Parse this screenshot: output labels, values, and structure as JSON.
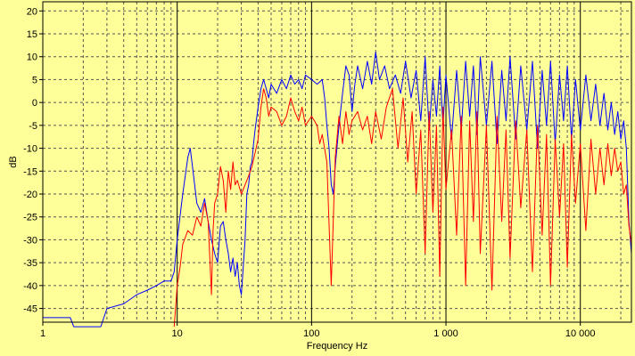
{
  "chart_data": {
    "type": "line",
    "title": "",
    "xlabel": "Frequency Hz",
    "ylabel": "dB",
    "xscale": "log",
    "xlim": [
      1,
      24000
    ],
    "ylim": [
      -48,
      22
    ],
    "grid": true,
    "legend": "none",
    "colors": {
      "background": "#ffff99",
      "grid_major": "#000000",
      "grid_minor": "#555555"
    },
    "x_ticks": [
      {
        "value": 1,
        "label": "1"
      },
      {
        "value": 10,
        "label": "10"
      },
      {
        "value": 100,
        "label": "100"
      },
      {
        "value": 1000,
        "label": "1 000"
      },
      {
        "value": 10000,
        "label": "10 000"
      }
    ],
    "y_ticks": [
      {
        "value": 20,
        "label": "20"
      },
      {
        "value": 15,
        "label": "15"
      },
      {
        "value": 10,
        "label": "10"
      },
      {
        "value": 5,
        "label": "5"
      },
      {
        "value": 0,
        "label": "0"
      },
      {
        "value": -5,
        "label": "-5"
      },
      {
        "value": -10,
        "label": "-10"
      },
      {
        "value": -15,
        "label": "-15"
      },
      {
        "value": -20,
        "label": "-20"
      },
      {
        "value": -25,
        "label": "-25"
      },
      {
        "value": -30,
        "label": "-30"
      },
      {
        "value": -35,
        "label": "-35"
      },
      {
        "value": -40,
        "label": "-40"
      },
      {
        "value": -45,
        "label": "-45"
      }
    ],
    "series": [
      {
        "color": "#0000ff",
        "points": [
          [
            1,
            -47
          ],
          [
            1.6,
            -47
          ],
          [
            1.7,
            -49
          ],
          [
            2.7,
            -49
          ],
          [
            3,
            -45
          ],
          [
            4,
            -44
          ],
          [
            5,
            -42
          ],
          [
            6,
            -41
          ],
          [
            7,
            -40
          ],
          [
            8,
            -39
          ],
          [
            9,
            -39
          ],
          [
            9.5,
            -37
          ],
          [
            10,
            -30
          ],
          [
            11,
            -20
          ],
          [
            12,
            -12
          ],
          [
            12.5,
            -10
          ],
          [
            13,
            -14
          ],
          [
            14,
            -22
          ],
          [
            15,
            -24
          ],
          [
            16,
            -21
          ],
          [
            17,
            -26
          ],
          [
            18,
            -30
          ],
          [
            19,
            -33
          ],
          [
            20,
            -35
          ],
          [
            21,
            -27
          ],
          [
            22,
            -26
          ],
          [
            23,
            -30
          ],
          [
            24,
            -33
          ],
          [
            25,
            -37
          ],
          [
            26,
            -34
          ],
          [
            27,
            -38
          ],
          [
            28,
            -35
          ],
          [
            29,
            -40
          ],
          [
            30,
            -42
          ],
          [
            31,
            -36
          ],
          [
            32,
            -30
          ],
          [
            33,
            -20
          ],
          [
            34,
            -18
          ],
          [
            35,
            -14
          ],
          [
            36,
            -13
          ],
          [
            37,
            -9
          ],
          [
            38,
            -6
          ],
          [
            40,
            -1
          ],
          [
            42,
            3
          ],
          [
            44,
            5
          ],
          [
            46,
            3
          ],
          [
            48,
            1
          ],
          [
            50,
            4
          ],
          [
            55,
            2
          ],
          [
            60,
            5
          ],
          [
            65,
            3
          ],
          [
            70,
            6
          ],
          [
            75,
            4
          ],
          [
            80,
            5
          ],
          [
            85,
            3
          ],
          [
            90,
            6
          ],
          [
            100,
            5
          ],
          [
            110,
            4
          ],
          [
            120,
            5
          ],
          [
            125,
            1
          ],
          [
            130,
            -5
          ],
          [
            135,
            -10
          ],
          [
            140,
            -18
          ],
          [
            145,
            -20
          ],
          [
            150,
            -14
          ],
          [
            160,
            -5
          ],
          [
            170,
            2
          ],
          [
            180,
            8
          ],
          [
            190,
            6
          ],
          [
            200,
            -2
          ],
          [
            210,
            4
          ],
          [
            220,
            8
          ],
          [
            240,
            3
          ],
          [
            260,
            9
          ],
          [
            280,
            4
          ],
          [
            300,
            11
          ],
          [
            320,
            5
          ],
          [
            350,
            8
          ],
          [
            380,
            3
          ],
          [
            420,
            6
          ],
          [
            460,
            2
          ],
          [
            500,
            9
          ],
          [
            550,
            1
          ],
          [
            600,
            7
          ],
          [
            650,
            -4
          ],
          [
            700,
            10
          ],
          [
            750,
            -6
          ],
          [
            800,
            5
          ],
          [
            850,
            -3
          ],
          [
            900,
            8
          ],
          [
            950,
            -5
          ],
          [
            1000,
            6
          ],
          [
            1100,
            -8
          ],
          [
            1200,
            7
          ],
          [
            1300,
            -6
          ],
          [
            1400,
            9
          ],
          [
            1500,
            -3
          ],
          [
            1600,
            8
          ],
          [
            1700,
            -7
          ],
          [
            1800,
            10
          ],
          [
            2000,
            -5
          ],
          [
            2200,
            9
          ],
          [
            2400,
            -9
          ],
          [
            2600,
            7
          ],
          [
            2800,
            -4
          ],
          [
            3000,
            10
          ],
          [
            3300,
            -8
          ],
          [
            3600,
            8
          ],
          [
            4000,
            -6
          ],
          [
            4400,
            9
          ],
          [
            4800,
            -10
          ],
          [
            5200,
            7
          ],
          [
            5600,
            -5
          ],
          [
            6000,
            9
          ],
          [
            6500,
            -9
          ],
          [
            7000,
            6
          ],
          [
            7500,
            -4
          ],
          [
            8000,
            8
          ],
          [
            8600,
            -8
          ],
          [
            9200,
            5
          ],
          [
            10000,
            -6
          ],
          [
            11000,
            6
          ],
          [
            12000,
            -4
          ],
          [
            13000,
            4
          ],
          [
            14000,
            -5
          ],
          [
            15000,
            2
          ],
          [
            16000,
            -6
          ],
          [
            17000,
            0
          ],
          [
            18000,
            -7
          ],
          [
            19000,
            -2
          ],
          [
            20000,
            -8
          ],
          [
            21000,
            -4
          ],
          [
            22000,
            -10
          ],
          [
            23000,
            -26
          ],
          [
            24000,
            -33
          ]
        ]
      },
      {
        "color": "#ff0000",
        "points": [
          [
            9.5,
            -49
          ],
          [
            10,
            -40
          ],
          [
            10.5,
            -36
          ],
          [
            11,
            -31
          ],
          [
            12,
            -28
          ],
          [
            13,
            -29
          ],
          [
            14,
            -25
          ],
          [
            15,
            -27
          ],
          [
            16,
            -22
          ],
          [
            17,
            -26
          ],
          [
            18,
            -42
          ],
          [
            18.5,
            -28
          ],
          [
            19,
            -22
          ],
          [
            20,
            -20
          ],
          [
            21,
            -14
          ],
          [
            22,
            -17
          ],
          [
            23,
            -24
          ],
          [
            24,
            -15
          ],
          [
            25,
            -19
          ],
          [
            26,
            -13
          ],
          [
            27,
            -18
          ],
          [
            28,
            -17
          ],
          [
            30,
            -20
          ],
          [
            32,
            -18
          ],
          [
            34,
            -16
          ],
          [
            36,
            -14
          ],
          [
            38,
            -11
          ],
          [
            40,
            -8
          ],
          [
            42,
            -1
          ],
          [
            44,
            3
          ],
          [
            46,
            1
          ],
          [
            48,
            -3
          ],
          [
            50,
            -1
          ],
          [
            55,
            -2
          ],
          [
            60,
            -5
          ],
          [
            65,
            -3
          ],
          [
            70,
            1
          ],
          [
            75,
            -2
          ],
          [
            80,
            -4
          ],
          [
            85,
            -1
          ],
          [
            90,
            -5
          ],
          [
            100,
            -3
          ],
          [
            110,
            -5
          ],
          [
            115,
            -9
          ],
          [
            120,
            -7
          ],
          [
            130,
            -13
          ],
          [
            140,
            -40
          ],
          [
            150,
            -12
          ],
          [
            160,
            -3
          ],
          [
            170,
            -9
          ],
          [
            180,
            -2
          ],
          [
            190,
            -7
          ],
          [
            200,
            -4
          ],
          [
            220,
            -2
          ],
          [
            240,
            -6
          ],
          [
            260,
            -3
          ],
          [
            280,
            -9
          ],
          [
            300,
            -2
          ],
          [
            330,
            -8
          ],
          [
            360,
            -1
          ],
          [
            400,
            3
          ],
          [
            440,
            -10
          ],
          [
            480,
            1
          ],
          [
            520,
            -13
          ],
          [
            560,
            -2
          ],
          [
            600,
            -20
          ],
          [
            650,
            -6
          ],
          [
            700,
            -33
          ],
          [
            750,
            -2
          ],
          [
            800,
            -24
          ],
          [
            850,
            -5
          ],
          [
            900,
            -38
          ],
          [
            950,
            -1
          ],
          [
            1000,
            -19
          ],
          [
            1100,
            -6
          ],
          [
            1200,
            -29
          ],
          [
            1300,
            -3
          ],
          [
            1400,
            -40
          ],
          [
            1500,
            -4
          ],
          [
            1600,
            -26
          ],
          [
            1700,
            -2
          ],
          [
            1800,
            -33
          ],
          [
            2000,
            -5
          ],
          [
            2200,
            -41
          ],
          [
            2400,
            -3
          ],
          [
            2600,
            -26
          ],
          [
            2800,
            -6
          ],
          [
            3000,
            -34
          ],
          [
            3300,
            -4
          ],
          [
            3600,
            -23
          ],
          [
            4000,
            -6
          ],
          [
            4400,
            -37
          ],
          [
            4800,
            -5
          ],
          [
            5200,
            -29
          ],
          [
            5600,
            -7
          ],
          [
            6000,
            -40
          ],
          [
            6500,
            -8
          ],
          [
            7000,
            -25
          ],
          [
            7500,
            -9
          ],
          [
            8000,
            -36
          ],
          [
            8600,
            -7
          ],
          [
            9200,
            -22
          ],
          [
            10000,
            -9
          ],
          [
            11000,
            -28
          ],
          [
            12000,
            -8
          ],
          [
            13000,
            -20
          ],
          [
            14000,
            -10
          ],
          [
            15000,
            -18
          ],
          [
            16000,
            -9
          ],
          [
            17000,
            -16
          ],
          [
            18000,
            -10
          ],
          [
            19000,
            -15
          ],
          [
            20000,
            -13
          ],
          [
            21000,
            -20
          ],
          [
            22000,
            -18
          ],
          [
            23000,
            -27
          ],
          [
            24000,
            -31
          ]
        ]
      }
    ]
  }
}
